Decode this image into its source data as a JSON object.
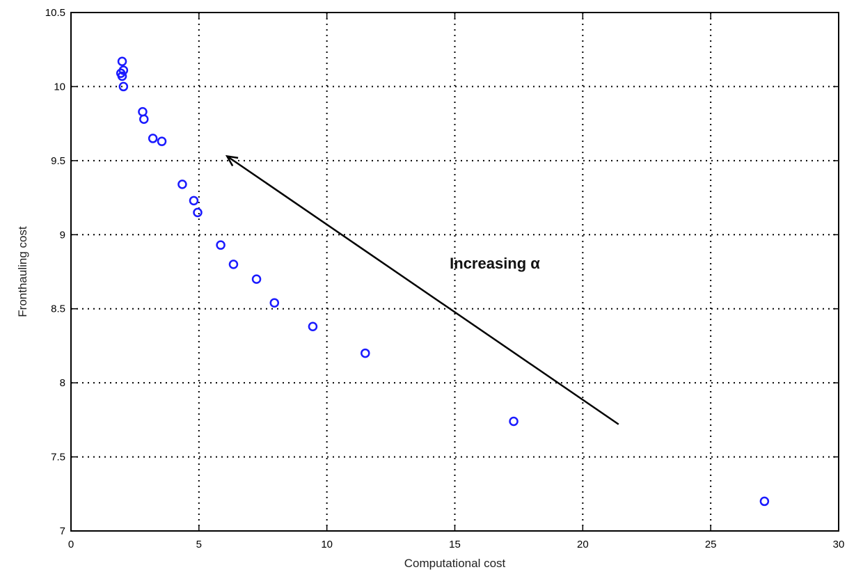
{
  "chart_data": {
    "type": "scatter",
    "xlabel": "Computational cost",
    "ylabel": "Fronthauling cost",
    "xlim": [
      0,
      30
    ],
    "ylim": [
      7,
      10.5
    ],
    "xticks": [
      0,
      5,
      10,
      15,
      20,
      25,
      30
    ],
    "yticks": [
      7,
      7.5,
      8,
      8.5,
      9,
      9.5,
      10,
      10.5
    ],
    "xtick_labels": [
      "0",
      "5",
      "10",
      "15",
      "20",
      "25",
      "30"
    ],
    "ytick_labels": [
      "7",
      "7.5",
      "8",
      "8.5",
      "9",
      "9.5",
      "10",
      "10.5"
    ],
    "grid": true,
    "marker_color": "#1a1aff",
    "series": [
      {
        "x": [
          2.0,
          2.05,
          1.95,
          2.0,
          2.05,
          2.8,
          2.85,
          3.2,
          3.55,
          4.35,
          4.8,
          4.95,
          5.85,
          6.35,
          7.25,
          7.95,
          9.45,
          11.5,
          17.3,
          27.1
        ],
        "y": [
          10.17,
          10.11,
          10.09,
          10.07,
          10.0,
          9.83,
          9.78,
          9.65,
          9.63,
          9.34,
          9.23,
          9.15,
          8.93,
          8.8,
          8.7,
          8.54,
          8.38,
          8.2,
          7.74,
          7.2
        ]
      }
    ],
    "annotations": [
      {
        "text": "Increasing α",
        "x": 14.8,
        "y": 8.77,
        "arrow_from": [
          21.4,
          7.72
        ],
        "arrow_to": [
          6.1,
          9.53
        ]
      }
    ]
  }
}
